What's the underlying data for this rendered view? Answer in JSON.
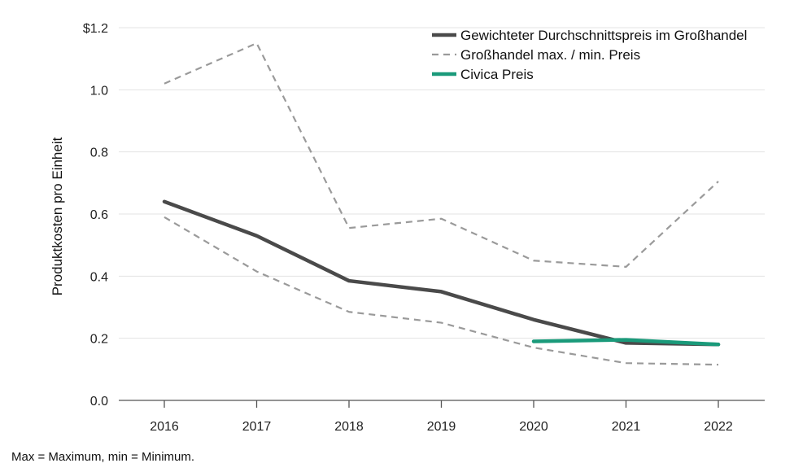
{
  "chart_data": {
    "type": "line",
    "title": "",
    "xlabel": "",
    "ylabel": "Produktkosten pro Einheit",
    "x": [
      "2016",
      "2017",
      "2018",
      "2019",
      "2020",
      "2021",
      "2022"
    ],
    "ylim": [
      0,
      1.2
    ],
    "yticks": [
      0.0,
      0.2,
      0.4,
      0.6,
      0.8,
      1.0,
      1.2
    ],
    "ytick_labels": [
      "0.0",
      "0.2",
      "0.4",
      "0.6",
      "0.8",
      "1.0",
      "$1.2"
    ],
    "grid": "horizontal",
    "legend_position": "top-right",
    "series": [
      {
        "name": "Gewichteter Durchschnittspreis im Großhandel",
        "style": "solid-thick",
        "color": "#4a4a4a",
        "values": [
          0.64,
          0.53,
          0.385,
          0.35,
          0.26,
          0.185,
          0.18
        ]
      },
      {
        "name": "Großhandel max. / min. Preis",
        "style": "dashed",
        "color": "#9a9a9a",
        "values": [
          1.02,
          1.15,
          0.555,
          0.585,
          0.45,
          0.43,
          0.705
        ]
      },
      {
        "name": "",
        "legend_hidden": true,
        "style": "dashed",
        "color": "#9a9a9a",
        "values": [
          0.59,
          0.415,
          0.285,
          0.25,
          0.17,
          0.12,
          0.115
        ]
      },
      {
        "name": "Civica Preis",
        "style": "solid-thick",
        "color": "#1a9a7a",
        "values": [
          null,
          null,
          null,
          null,
          0.19,
          0.195,
          0.18
        ]
      }
    ]
  },
  "footnote": "Max = Maximum, min = Minimum."
}
